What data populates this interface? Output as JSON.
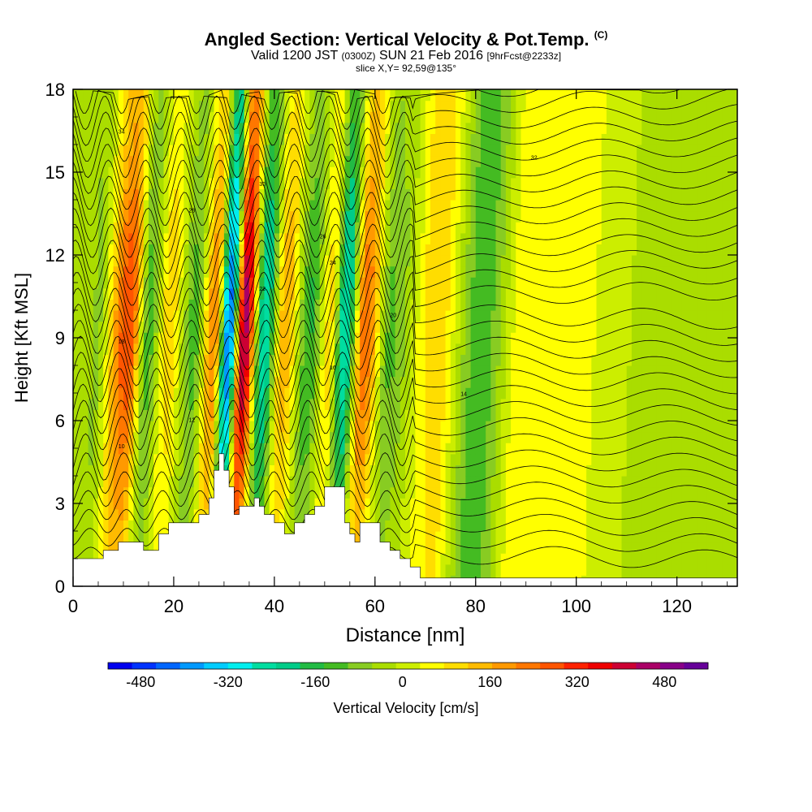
{
  "title": "Angled Section: Vertical Velocity & Pot.Temp.",
  "title_mark": "(C)",
  "subtitle_main": "Valid 1200 JST",
  "subtitle_z": "(0300Z)",
  "subtitle_date": "SUN 21 Feb 2016",
  "subtitle_fcst": "[9hrFcst@2233z]",
  "slice_text": "slice X,Y= 92,59@135°",
  "chart_data": {
    "type": "heatmap",
    "xlabel": "Distance [nm]",
    "ylabel": "Height [Kft MSL]",
    "xlim": [
      0,
      132
    ],
    "ylim": [
      0,
      18
    ],
    "x_ticks": [
      "0",
      "20",
      "40",
      "60",
      "80",
      "100",
      "120"
    ],
    "y_ticks": [
      "0",
      "3",
      "6",
      "9",
      "12",
      "15",
      "18"
    ],
    "colorbar": {
      "label": "Vertical Velocity [cm/s]",
      "tick_labels": [
        "-480",
        "-320",
        "-160",
        "0",
        "160",
        "320",
        "480"
      ],
      "tick_values": [
        -480,
        -320,
        -160,
        0,
        160,
        320,
        480
      ],
      "range": [
        -540,
        560
      ],
      "colors": [
        "#0000ee",
        "#0033ff",
        "#0066ff",
        "#0099ff",
        "#00ccff",
        "#00eeee",
        "#00dda0",
        "#00cc88",
        "#22bb44",
        "#44bb22",
        "#88cc22",
        "#aadd00",
        "#ccee00",
        "#ffff00",
        "#ffdd00",
        "#ffbb00",
        "#ff9900",
        "#ff7700",
        "#ff5500",
        "#ff2200",
        "#ee0000",
        "#cc0033",
        "#aa0066",
        "#880088",
        "#660099"
      ]
    },
    "velocity_bands": [
      {
        "x": 4,
        "value": -90
      },
      {
        "x": 11,
        "value": 300
      },
      {
        "x": 15,
        "value": -120
      },
      {
        "x": 19,
        "value": 110
      },
      {
        "x": 24,
        "value": -120
      },
      {
        "x": 28,
        "value": 210
      },
      {
        "x": 31,
        "value": -420
      },
      {
        "x": 34,
        "value": 450
      },
      {
        "x": 38,
        "value": -260
      },
      {
        "x": 42,
        "value": 160
      },
      {
        "x": 47,
        "value": -150
      },
      {
        "x": 51,
        "value": 90
      },
      {
        "x": 54,
        "value": -280
      },
      {
        "x": 58,
        "value": 250
      },
      {
        "x": 63,
        "value": -110
      },
      {
        "x": 72,
        "value": 110
      },
      {
        "x": 81,
        "value": -130
      },
      {
        "x": 90,
        "value": 70
      },
      {
        "x": 100,
        "value": 40
      },
      {
        "x": 118,
        "value": -40
      }
    ],
    "terrain_kft": [
      [
        0,
        1.0
      ],
      [
        5,
        1.0
      ],
      [
        6,
        1.3
      ],
      [
        8,
        1.3
      ],
      [
        9,
        1.6
      ],
      [
        13,
        1.6
      ],
      [
        14,
        1.3
      ],
      [
        16,
        1.3
      ],
      [
        17,
        1.9
      ],
      [
        18,
        1.9
      ],
      [
        19,
        2.3
      ],
      [
        24,
        2.3
      ],
      [
        25,
        2.6
      ],
      [
        26,
        2.6
      ],
      [
        27,
        3.2
      ],
      [
        28,
        4.2
      ],
      [
        29,
        4.8
      ],
      [
        30,
        4.2
      ],
      [
        31,
        3.6
      ],
      [
        32,
        2.6
      ],
      [
        33,
        2.9
      ],
      [
        34,
        2.9
      ],
      [
        36,
        3.2
      ],
      [
        37,
        2.9
      ],
      [
        38,
        2.6
      ],
      [
        40,
        2.3
      ],
      [
        42,
        1.9
      ],
      [
        44,
        2.3
      ],
      [
        46,
        2.6
      ],
      [
        48,
        2.9
      ],
      [
        50,
        3.6
      ],
      [
        53,
        3.6
      ],
      [
        54,
        2.3
      ],
      [
        55,
        1.9
      ],
      [
        56,
        1.6
      ],
      [
        57,
        2.3
      ],
      [
        60,
        2.3
      ],
      [
        61,
        1.6
      ],
      [
        63,
        1.3
      ],
      [
        65,
        1.0
      ],
      [
        67,
        0.7
      ],
      [
        69,
        0.3
      ],
      [
        132,
        0.3
      ]
    ],
    "theta_labels": [
      "10",
      "12",
      "14",
      "16",
      "18",
      "20",
      "22",
      "24",
      "26",
      "28",
      "30",
      "32",
      "34"
    ]
  }
}
